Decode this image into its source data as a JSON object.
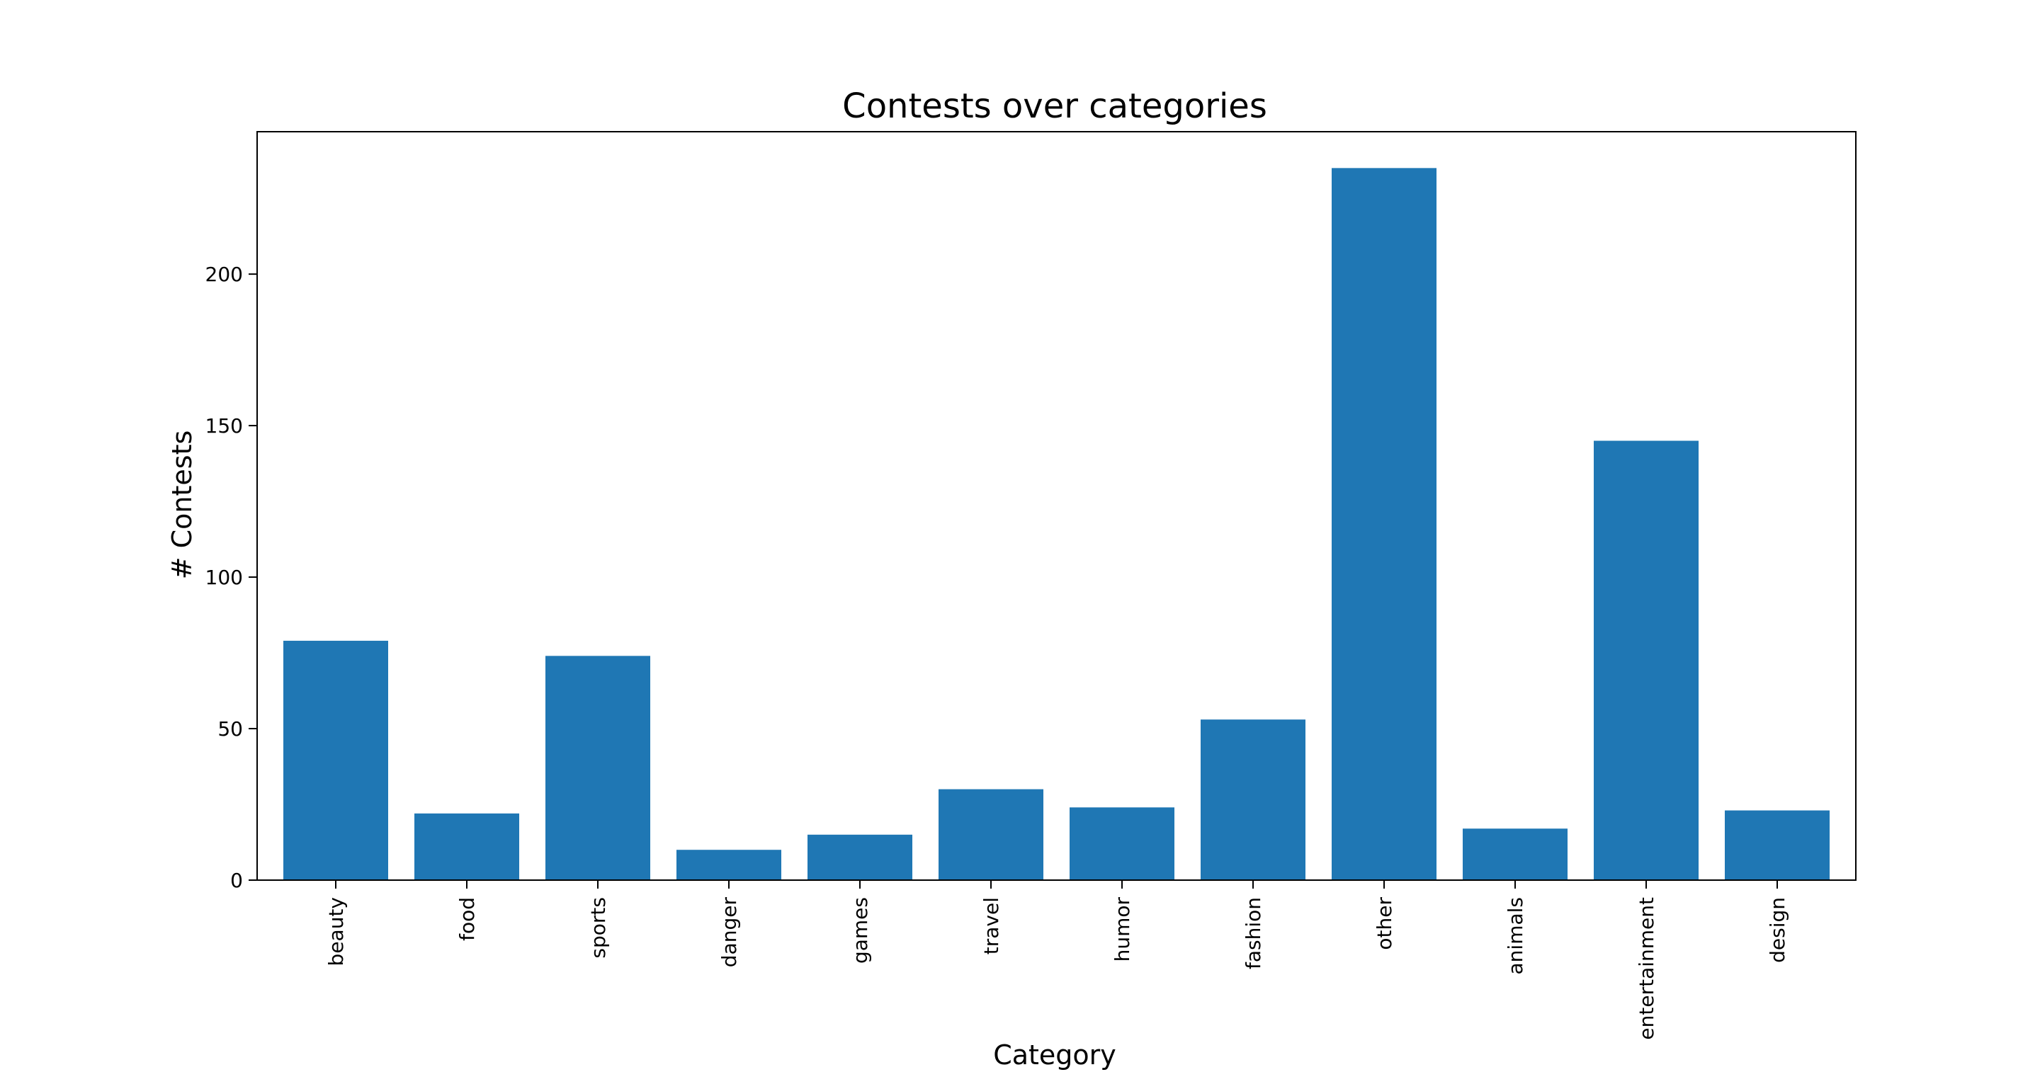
{
  "chart_data": {
    "type": "bar",
    "title": "Contests over categories",
    "xlabel": "Category",
    "ylabel": "# Contests",
    "categories": [
      "beauty",
      "food",
      "sports",
      "danger",
      "games",
      "travel",
      "humor",
      "fashion",
      "other",
      "animals",
      "entertainment",
      "design"
    ],
    "values": [
      79,
      22,
      74,
      10,
      15,
      30,
      24,
      53,
      235,
      17,
      145,
      23
    ],
    "ylim": [
      0,
      247
    ],
    "yticks": [
      0,
      50,
      100,
      150,
      200
    ],
    "grid": false,
    "legend": "none",
    "bar_color": "#1f77b4"
  }
}
